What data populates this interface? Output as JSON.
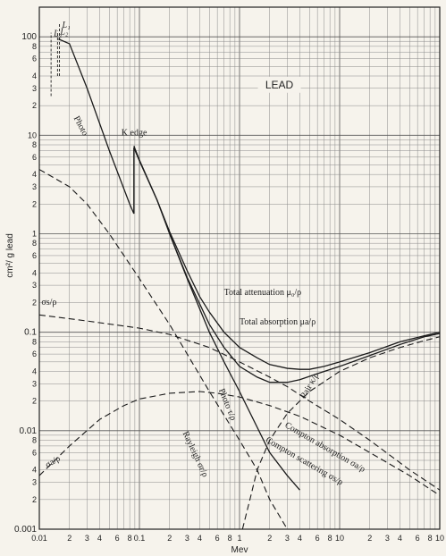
{
  "chart_data": {
    "type": "line",
    "title": "LEAD",
    "xlabel": "Mev",
    "ylabel": "cm²/ g lead",
    "x_scale": "log",
    "y_scale": "log",
    "xlim": [
      0.01,
      100
    ],
    "ylim": [
      0.001,
      200
    ],
    "grid": true,
    "x_tick_labels": [
      {
        "v": 0.01,
        "t": "0.01"
      },
      {
        "v": 0.02,
        "t": "2"
      },
      {
        "v": 0.03,
        "t": "3"
      },
      {
        "v": 0.04,
        "t": "4"
      },
      {
        "v": 0.06,
        "t": "6"
      },
      {
        "v": 0.08,
        "t": "8"
      },
      {
        "v": 0.1,
        "t": "0.1"
      },
      {
        "v": 0.2,
        "t": "2"
      },
      {
        "v": 0.3,
        "t": "3"
      },
      {
        "v": 0.4,
        "t": "4"
      },
      {
        "v": 0.6,
        "t": "6"
      },
      {
        "v": 0.8,
        "t": "8"
      },
      {
        "v": 1,
        "t": "1"
      },
      {
        "v": 2,
        "t": "2"
      },
      {
        "v": 3,
        "t": "3"
      },
      {
        "v": 4,
        "t": "4"
      },
      {
        "v": 6,
        "t": "6"
      },
      {
        "v": 8,
        "t": "8"
      },
      {
        "v": 10,
        "t": "10"
      },
      {
        "v": 20,
        "t": "2"
      },
      {
        "v": 30,
        "t": "3"
      },
      {
        "v": 40,
        "t": "4"
      },
      {
        "v": 60,
        "t": "6"
      },
      {
        "v": 80,
        "t": "8"
      },
      {
        "v": 100,
        "t": "10"
      }
    ],
    "y_tick_labels": [
      {
        "v": 0.001,
        "t": "0.001"
      },
      {
        "v": 0.002,
        "t": "2"
      },
      {
        "v": 0.003,
        "t": "3"
      },
      {
        "v": 0.004,
        "t": "4"
      },
      {
        "v": 0.006,
        "t": "6"
      },
      {
        "v": 0.008,
        "t": "8"
      },
      {
        "v": 0.01,
        "t": "0.01"
      },
      {
        "v": 0.02,
        "t": "2"
      },
      {
        "v": 0.03,
        "t": "3"
      },
      {
        "v": 0.04,
        "t": "4"
      },
      {
        "v": 0.06,
        "t": "6"
      },
      {
        "v": 0.08,
        "t": "8"
      },
      {
        "v": 0.1,
        "t": "0.1"
      },
      {
        "v": 0.2,
        "t": "2"
      },
      {
        "v": 0.3,
        "t": "3"
      },
      {
        "v": 0.4,
        "t": "4"
      },
      {
        "v": 0.6,
        "t": "6"
      },
      {
        "v": 0.8,
        "t": "8"
      },
      {
        "v": 1,
        "t": "1"
      },
      {
        "v": 2,
        "t": "2"
      },
      {
        "v": 3,
        "t": "3"
      },
      {
        "v": 4,
        "t": "4"
      },
      {
        "v": 6,
        "t": "6"
      },
      {
        "v": 8,
        "t": "8"
      },
      {
        "v": 10,
        "t": "10"
      },
      {
        "v": 20,
        "t": "2"
      },
      {
        "v": 30,
        "t": "3"
      },
      {
        "v": 40,
        "t": "4"
      },
      {
        "v": 60,
        "t": "6"
      },
      {
        "v": 80,
        "t": "8"
      },
      {
        "v": 100,
        "t": "100"
      }
    ],
    "series": [
      {
        "name": "Photo τ/ρ",
        "style": "solid",
        "points": [
          [
            0.0155,
            95
          ],
          [
            0.02,
            85
          ],
          [
            0.03,
            30
          ],
          [
            0.05,
            7
          ],
          [
            0.08,
            2
          ],
          [
            0.088,
            1.6
          ],
          [
            0.088,
            7.5
          ],
          [
            0.1,
            5.5
          ],
          [
            0.15,
            2.2
          ],
          [
            0.2,
            1.0
          ],
          [
            0.3,
            0.35
          ],
          [
            0.5,
            0.1
          ],
          [
            0.7,
            0.05
          ],
          [
            1,
            0.025
          ],
          [
            2,
            0.006
          ],
          [
            3,
            0.0035
          ],
          [
            4,
            0.0025
          ]
        ]
      },
      {
        "name": "Total attenuation μ₀/ρ",
        "style": "solid",
        "points": [
          [
            0.088,
            7.8
          ],
          [
            0.1,
            5.6
          ],
          [
            0.15,
            2.2
          ],
          [
            0.2,
            1.05
          ],
          [
            0.3,
            0.42
          ],
          [
            0.4,
            0.23
          ],
          [
            0.5,
            0.16
          ],
          [
            0.7,
            0.1
          ],
          [
            1,
            0.07
          ],
          [
            1.5,
            0.055
          ],
          [
            2,
            0.047
          ],
          [
            3,
            0.043
          ],
          [
            4,
            0.042
          ],
          [
            5,
            0.042
          ],
          [
            7,
            0.045
          ],
          [
            10,
            0.05
          ],
          [
            20,
            0.062
          ],
          [
            40,
            0.08
          ],
          [
            70,
            0.092
          ],
          [
            100,
            0.1
          ]
        ]
      },
      {
        "name": "Total absorption μa/ρ",
        "style": "solid",
        "points": [
          [
            0.2,
            1.0
          ],
          [
            0.3,
            0.36
          ],
          [
            0.5,
            0.12
          ],
          [
            0.7,
            0.07
          ],
          [
            1,
            0.045
          ],
          [
            1.5,
            0.035
          ],
          [
            2,
            0.031
          ],
          [
            3,
            0.031
          ],
          [
            4,
            0.033
          ],
          [
            6,
            0.038
          ],
          [
            10,
            0.045
          ],
          [
            20,
            0.058
          ],
          [
            40,
            0.075
          ],
          [
            70,
            0.09
          ],
          [
            100,
            0.097
          ]
        ]
      },
      {
        "name": "σs/ρ",
        "style": "dashed",
        "points": [
          [
            0.01,
            0.15
          ],
          [
            0.03,
            0.13
          ],
          [
            0.1,
            0.11
          ],
          [
            0.2,
            0.095
          ],
          [
            0.5,
            0.07
          ],
          [
            1,
            0.05
          ],
          [
            2,
            0.035
          ],
          [
            3,
            0.028
          ],
          [
            5,
            0.02
          ],
          [
            10,
            0.013
          ],
          [
            20,
            0.008
          ],
          [
            50,
            0.004
          ],
          [
            100,
            0.0025
          ]
        ]
      },
      {
        "name": "σa/ρ",
        "style": "dashed",
        "points": [
          [
            0.01,
            0.0035
          ],
          [
            0.02,
            0.007
          ],
          [
            0.04,
            0.013
          ],
          [
            0.07,
            0.018
          ],
          [
            0.1,
            0.021
          ],
          [
            0.2,
            0.024
          ],
          [
            0.4,
            0.025
          ],
          [
            0.6,
            0.024
          ],
          [
            1,
            0.022
          ],
          [
            2,
            0.018
          ],
          [
            4,
            0.014
          ],
          [
            10,
            0.009
          ],
          [
            20,
            0.006
          ],
          [
            50,
            0.0035
          ],
          [
            100,
            0.0022
          ]
        ]
      },
      {
        "name": "σr/ρ",
        "style": "dashed",
        "points": [
          [
            0.01,
            4.5
          ],
          [
            0.02,
            3.0
          ],
          [
            0.03,
            2.0
          ],
          [
            0.05,
            1.0
          ],
          [
            0.1,
            0.35
          ],
          [
            0.2,
            0.12
          ],
          [
            0.3,
            0.06
          ],
          [
            0.5,
            0.025
          ],
          [
            1,
            0.008
          ],
          [
            1.5,
            0.004
          ],
          [
            2,
            0.002
          ],
          [
            3,
            0.001
          ]
        ]
      },
      {
        "name": "κ/ρ",
        "style": "dashed",
        "points": [
          [
            1.07,
            0.001
          ],
          [
            1.3,
            0.0022
          ],
          [
            1.5,
            0.004
          ],
          [
            2,
            0.008
          ],
          [
            3,
            0.015
          ],
          [
            5,
            0.025
          ],
          [
            10,
            0.04
          ],
          [
            20,
            0.055
          ],
          [
            40,
            0.07
          ],
          [
            70,
            0.082
          ],
          [
            100,
            0.09
          ]
        ]
      }
    ],
    "edge_lines": [
      {
        "label": "L₁",
        "x": 0.0159,
        "y": [
          40,
          135
        ]
      },
      {
        "label": "L₂",
        "x": 0.0152,
        "y": [
          40,
          115
        ]
      },
      {
        "label": "L₃",
        "x": 0.0131,
        "y": [
          25,
          110
        ]
      }
    ],
    "annotations": [
      {
        "text": "Photo",
        "x": 0.022,
        "y": 15,
        "rot": 62
      },
      {
        "text": "K edge",
        "x": 0.066,
        "y": 10,
        "rot": 0
      },
      {
        "text": "Total attenuation μ₀/ρ",
        "x": 0.7,
        "y": 0.24,
        "rot": 0
      },
      {
        "text": "Total absorption μa/ρ",
        "x": 1.0,
        "y": 0.12,
        "rot": 0
      },
      {
        "text": "σs/ρ",
        "x": 0.0105,
        "y": 0.19,
        "rot": 0
      },
      {
        "text": "σa/ρ",
        "x": 0.012,
        "y": 0.0042,
        "rot": -30
      },
      {
        "text": "Rayleigh σr/ρ",
        "x": 0.27,
        "y": 0.0095,
        "rot": 65
      },
      {
        "text": "Photo τ/ρ",
        "x": 0.62,
        "y": 0.026,
        "rot": 68
      },
      {
        "text": "Pair κ/ρ",
        "x": 4.5,
        "y": 0.021,
        "rot": -60
      },
      {
        "text": "Compton absorption σa/ρ",
        "x": 2.8,
        "y": 0.011,
        "rot": 30
      },
      {
        "text": "Compton scattering σs/ρ",
        "x": 1.8,
        "y": 0.0078,
        "rot": 30
      }
    ]
  }
}
